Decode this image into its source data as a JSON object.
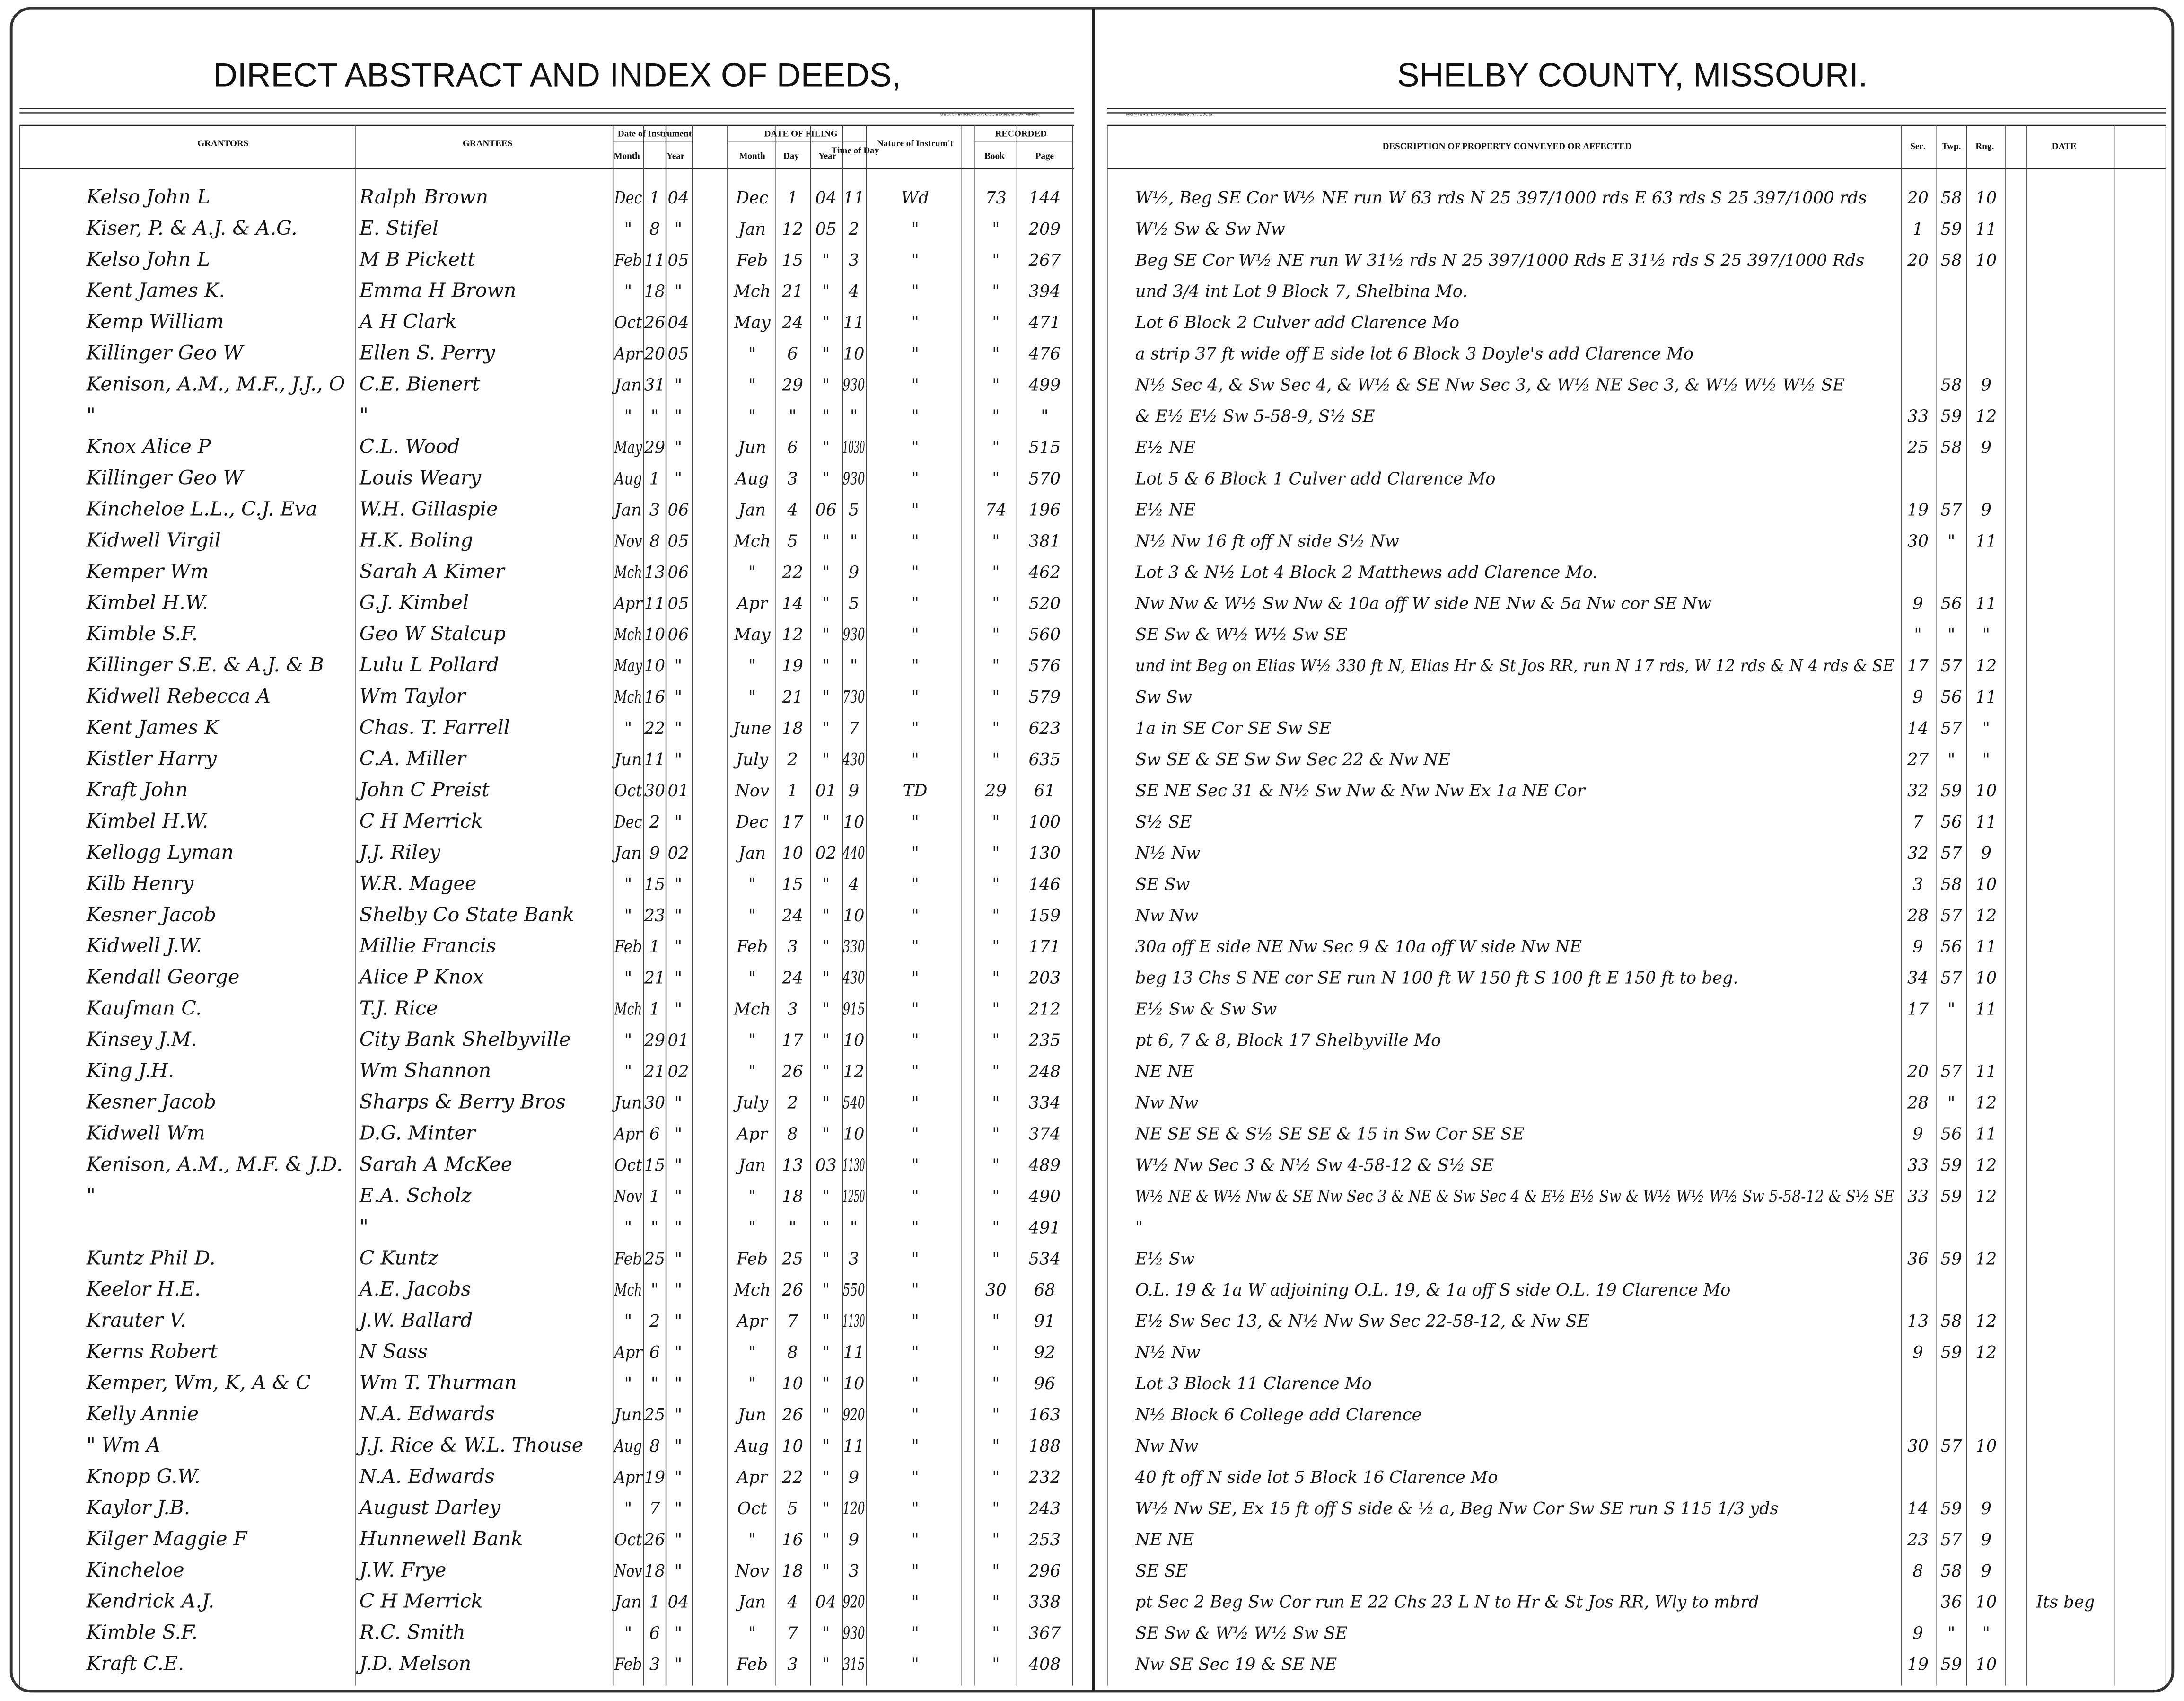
{
  "header": {
    "left_title": "DIRECT ABSTRACT AND INDEX OF DEEDS,",
    "right_title": "SHELBY COUNTY, MISSOURI.",
    "left_imprint": "GEO. D. BARNARD & CO., BLANK BOOK MFRS",
    "right_imprint": "PRINTERS, LITHOGRAPHERS, ST. LOUIS."
  },
  "columns": {
    "grantors": "GRANTORS",
    "grantees": "GRANTEES",
    "date_of_instrument": "Date of Instrument",
    "instrument_month": "Month",
    "instrument_year": "Year",
    "date_of_filing": "DATE OF FILING",
    "filing_month": "Month",
    "filing_day": "Day",
    "filing_year": "Year",
    "filing_time": "Time of Day",
    "nature": "Nature of Instrum't",
    "recorded": "RECORDED",
    "book": "Book",
    "page": "Page",
    "description": "DESCRIPTION OF PROPERTY CONVEYED OR AFFECTED",
    "sec": "Sec.",
    "twp": "Twp.",
    "rng": "Rng.",
    "date": "DATE"
  },
  "table": {
    "rows": [
      [
        "Kelso John L",
        "Ralph Brown",
        "Dec",
        "1",
        "04",
        "Dec",
        "1",
        "04",
        "11",
        "Wd",
        "73",
        "144",
        "W½, Beg SE Cor W½ NE run W 63 rds N 25 397/1000 rds E 63 rds S 25 397/1000 rds",
        "20",
        "58",
        "10",
        null
      ],
      [
        "Kiser, P. & A.J. & A.G.",
        "E. Stifel",
        "\"",
        "8",
        "\"",
        "Jan",
        "12",
        "05",
        "2",
        "\"",
        "\"",
        "209",
        "W½ Sw & Sw Nw",
        "1",
        "59",
        "11",
        null
      ],
      [
        "Kelso John L",
        "M B Pickett",
        "Feb",
        "11",
        "05",
        "Feb",
        "15",
        "\"",
        "3",
        "\"",
        "\"",
        "267",
        "Beg SE Cor W½ NE run W 31½ rds N 25 397/1000 Rds E 31½ rds S 25 397/1000 Rds",
        "20",
        "58",
        "10",
        null
      ],
      [
        "Kent James K.",
        "Emma H Brown",
        "\"",
        "18",
        "\"",
        "Mch",
        "21",
        "\"",
        "4",
        "\"",
        "\"",
        "394",
        "und 3/4 int Lot 9 Block 7, Shelbina Mo.",
        null,
        null,
        null,
        null
      ],
      [
        "Kemp William",
        "A H Clark",
        "Oct",
        "26",
        "04",
        "May",
        "24",
        "\"",
        "11",
        "\"",
        "\"",
        "471",
        "Lot 6 Block 2 Culver add Clarence Mo",
        null,
        null,
        null,
        null
      ],
      [
        "Killinger Geo W",
        "Ellen S. Perry",
        "Apr",
        "20",
        "05",
        "\"",
        "6",
        "\"",
        "10",
        "\"",
        "\"",
        "476",
        "a strip 37 ft wide off E side lot 6 Block 3 Doyle's add Clarence Mo",
        null,
        null,
        null,
        null
      ],
      [
        "Kenison, A.M., M.F., J.J., O",
        "C.E. Bienert",
        "Jan",
        "31",
        "\"",
        "\"",
        "29",
        "\"",
        "930",
        "\"",
        "\"",
        "499",
        "N½ Sec 4, & Sw Sec 4, & W½ & SE Nw Sec 3, & W½ NE Sec 3, & W½ W½ W½ SE",
        null,
        "58",
        "9",
        null
      ],
      [
        "\"",
        "\"",
        "\"",
        "\"",
        "\"",
        "\"",
        "\"",
        "\"",
        "\"",
        "\"",
        "\"",
        "\"",
        "& E½ E½ Sw 5-58-9, S½ SE",
        "33",
        "59",
        "12",
        null
      ],
      [
        "Knox Alice P",
        "C.L. Wood",
        "May",
        "29",
        "\"",
        "Jun",
        "6",
        "\"",
        "1030",
        "\"",
        "\"",
        "515",
        "E½ NE",
        "25",
        "58",
        "9",
        null
      ],
      [
        "Killinger Geo W",
        "Louis Weary",
        "Aug",
        "1",
        "\"",
        "Aug",
        "3",
        "\"",
        "930",
        "\"",
        "\"",
        "570",
        "Lot 5 & 6 Block 1 Culver add Clarence Mo",
        null,
        null,
        null,
        null
      ],
      [
        "Kincheloe L.L., C.J. Eva",
        "W.H. Gillaspie",
        "Jan",
        "3",
        "06",
        "Jan",
        "4",
        "06",
        "5",
        "\"",
        "74",
        "196",
        "E½ NE",
        "19",
        "57",
        "9",
        null
      ],
      [
        "Kidwell Virgil",
        "H.K. Boling",
        "Nov",
        "8",
        "05",
        "Mch",
        "5",
        "\"",
        "\"",
        "\"",
        "\"",
        "381",
        "N½ Nw 16 ft off N side S½ Nw",
        "30",
        "\"",
        "11",
        null
      ],
      [
        "Kemper Wm",
        "Sarah A Kimer",
        "Mch",
        "13",
        "06",
        "\"",
        "22",
        "\"",
        "9",
        "\"",
        "\"",
        "462",
        "Lot 3 & N½ Lot 4 Block 2 Matthews add Clarence Mo.",
        null,
        null,
        null,
        null
      ],
      [
        "Kimbel H.W.",
        "G.J. Kimbel",
        "Apr",
        "11",
        "05",
        "Apr",
        "14",
        "\"",
        "5",
        "\"",
        "\"",
        "520",
        "Nw Nw & W½ Sw Nw & 10a off W side NE Nw & 5a Nw cor SE Nw",
        "9",
        "56",
        "11",
        null
      ],
      [
        "Kimble S.F.",
        "Geo W Stalcup",
        "Mch",
        "10",
        "06",
        "May",
        "12",
        "\"",
        "930",
        "\"",
        "\"",
        "560",
        "SE Sw & W½ W½ Sw SE",
        "\"",
        "\"",
        "\"",
        null
      ],
      [
        "Killinger S.E. & A.J. & B",
        "Lulu L Pollard",
        "May",
        "10",
        "\"",
        "\"",
        "19",
        "\"",
        "\"",
        "\"",
        "\"",
        "576",
        "und int Beg on Elias W½ 330 ft N, Elias Hr & St Jos RR, run N 17 rds, W 12 rds & N 4 rds & SE",
        "17",
        "57",
        "12",
        null
      ],
      [
        "Kidwell Rebecca A",
        "Wm Taylor",
        "Mch",
        "16",
        "\"",
        "\"",
        "21",
        "\"",
        "730",
        "\"",
        "\"",
        "579",
        "Sw Sw",
        "9",
        "56",
        "11",
        null
      ],
      [
        "Kent James K",
        "Chas. T. Farrell",
        "\"",
        "22",
        "\"",
        "June",
        "18",
        "\"",
        "7",
        "\"",
        "\"",
        "623",
        "1a in SE Cor SE Sw SE",
        "14",
        "57",
        "\"",
        null
      ],
      [
        "Kistler Harry",
        "C.A. Miller",
        "Jun",
        "11",
        "\"",
        "July",
        "2",
        "\"",
        "430",
        "\"",
        "\"",
        "635",
        "Sw SE & SE Sw Sw Sec 22 & Nw NE",
        "27",
        "\"",
        "\"",
        null
      ],
      [
        "Kraft John",
        "John C Preist",
        "Oct",
        "30",
        "01",
        "Nov",
        "1",
        "01",
        "9",
        "TD",
        "29",
        "61",
        "SE NE Sec 31 & N½ Sw Nw & Nw Nw Ex 1a NE Cor",
        "32",
        "59",
        "10",
        null
      ],
      [
        "Kimbel H.W.",
        "C H Merrick",
        "Dec",
        "2",
        "\"",
        "Dec",
        "17",
        "\"",
        "10",
        "\"",
        "\"",
        "100",
        "S½ SE",
        "7",
        "56",
        "11",
        null
      ],
      [
        "Kellogg Lyman",
        "J.J. Riley",
        "Jan",
        "9",
        "02",
        "Jan",
        "10",
        "02",
        "440",
        "\"",
        "\"",
        "130",
        "N½ Nw",
        "32",
        "57",
        "9",
        null
      ],
      [
        "Kilb Henry",
        "W.R. Magee",
        "\"",
        "15",
        "\"",
        "\"",
        "15",
        "\"",
        "4",
        "\"",
        "\"",
        "146",
        "SE Sw",
        "3",
        "58",
        "10",
        null
      ],
      [
        "Kesner Jacob",
        "Shelby Co State Bank",
        "\"",
        "23",
        "\"",
        "\"",
        "24",
        "\"",
        "10",
        "\"",
        "\"",
        "159",
        "Nw Nw",
        "28",
        "57",
        "12",
        null
      ],
      [
        "Kidwell J.W.",
        "Millie Francis",
        "Feb",
        "1",
        "\"",
        "Feb",
        "3",
        "\"",
        "330",
        "\"",
        "\"",
        "171",
        "30a off E side NE Nw Sec 9 & 10a off W side Nw NE",
        "9",
        "56",
        "11",
        null
      ],
      [
        "Kendall George",
        "Alice P Knox",
        "\"",
        "21",
        "\"",
        "\"",
        "24",
        "\"",
        "430",
        "\"",
        "\"",
        "203",
        "beg 13 Chs S NE cor SE run N 100 ft W 150 ft S 100 ft E 150 ft to beg.",
        "34",
        "57",
        "10",
        null
      ],
      [
        "Kaufman C.",
        "T.J. Rice",
        "Mch",
        "1",
        "\"",
        "Mch",
        "3",
        "\"",
        "915",
        "\"",
        "\"",
        "212",
        "E½ Sw & Sw Sw",
        "17",
        "\"",
        "11",
        null
      ],
      [
        "Kinsey J.M.",
        "City Bank Shelbyville",
        "\"",
        "29",
        "01",
        "\"",
        "17",
        "\"",
        "10",
        "\"",
        "\"",
        "235",
        "pt 6, 7 & 8, Block 17 Shelbyville Mo",
        null,
        null,
        null,
        null
      ],
      [
        "King J.H.",
        "Wm Shannon",
        "\"",
        "21",
        "02",
        "\"",
        "26",
        "\"",
        "12",
        "\"",
        "\"",
        "248",
        "NE NE",
        "20",
        "57",
        "11",
        null
      ],
      [
        "Kesner Jacob",
        "Sharps & Berry Bros",
        "Jun",
        "30",
        "\"",
        "July",
        "2",
        "\"",
        "540",
        "\"",
        "\"",
        "334",
        "Nw Nw",
        "28",
        "\"",
        "12",
        null
      ],
      [
        "Kidwell Wm",
        "D.G. Minter",
        "Apr",
        "6",
        "\"",
        "Apr",
        "8",
        "\"",
        "10",
        "\"",
        "\"",
        "374",
        "NE SE SE & S½ SE SE & 15 in Sw Cor SE SE",
        "9",
        "56",
        "11",
        null
      ],
      [
        "Kenison, A.M., M.F. & J.D.",
        "Sarah A McKee",
        "Oct",
        "15",
        "\"",
        "Jan",
        "13",
        "03",
        "1130",
        "\"",
        "\"",
        "489",
        "W½ Nw Sec 3 & N½ Sw 4-58-12 & S½ SE",
        "33",
        "59",
        "12",
        null
      ],
      [
        "\"",
        "E.A. Scholz",
        "Nov",
        "1",
        "\"",
        "\"",
        "18",
        "\"",
        "1250",
        "\"",
        "\"",
        "490",
        "W½ NE & W½ Nw & SE Nw Sec 3 & NE & Sw Sec 4 & E½ E½ Sw & W½ W½ W½ Sw 5-58-12 & S½ SE",
        "33",
        "59",
        "12",
        null
      ],
      [
        null,
        "\"",
        "\"",
        "\"",
        "\"",
        "\"",
        "\"",
        "\"",
        "\"",
        "\"",
        "\"",
        "491",
        "\"",
        null,
        null,
        null,
        null
      ],
      [
        "Kuntz Phil D.",
        "C Kuntz",
        "Feb",
        "25",
        "\"",
        "Feb",
        "25",
        "\"",
        "3",
        "\"",
        "\"",
        "534",
        "E½ Sw",
        "36",
        "59",
        "12",
        null
      ],
      [
        "Keelor H.E.",
        "A.E. Jacobs",
        "Mch",
        "\"",
        "\"",
        "Mch",
        "26",
        "\"",
        "550",
        "\"",
        "30",
        "68",
        "O.L. 19 & 1a W adjoining O.L. 19, & 1a off S side O.L. 19 Clarence Mo",
        null,
        null,
        null,
        null
      ],
      [
        "Krauter V.",
        "J.W. Ballard",
        "\"",
        "2",
        "\"",
        "Apr",
        "7",
        "\"",
        "1130",
        "\"",
        "\"",
        "91",
        "E½ Sw Sec 13, & N½ Nw Sw Sec 22-58-12, & Nw SE",
        "13",
        "58",
        "12",
        null
      ],
      [
        "Kerns Robert",
        "N Sass",
        "Apr",
        "6",
        "\"",
        "\"",
        "8",
        "\"",
        "11",
        "\"",
        "\"",
        "92",
        "N½ Nw",
        "9",
        "59",
        "12",
        null
      ],
      [
        "Kemper, Wm, K, A & C",
        "Wm T. Thurman",
        "\"",
        "\"",
        "\"",
        "\"",
        "10",
        "\"",
        "10",
        "\"",
        "\"",
        "96",
        "Lot 3 Block 11 Clarence Mo",
        null,
        null,
        null,
        null
      ],
      [
        "Kelly Annie",
        "N.A. Edwards",
        "Jun",
        "25",
        "\"",
        "Jun",
        "26",
        "\"",
        "920",
        "\"",
        "\"",
        "163",
        "N½ Block 6 College add Clarence",
        null,
        null,
        null,
        null
      ],
      [
        "\" Wm A",
        "J.J. Rice & W.L. Thouse",
        "Aug",
        "8",
        "\"",
        "Aug",
        "10",
        "\"",
        "11",
        "\"",
        "\"",
        "188",
        "Nw Nw",
        "30",
        "57",
        "10",
        null
      ],
      [
        "Knopp G.W.",
        "N.A. Edwards",
        "Apr",
        "19",
        "\"",
        "Apr",
        "22",
        "\"",
        "9",
        "\"",
        "\"",
        "232",
        "40 ft off N side lot 5 Block 16 Clarence Mo",
        null,
        null,
        null,
        null
      ],
      [
        "Kaylor J.B.",
        "August Darley",
        "\"",
        "7",
        "\"",
        "Oct",
        "5",
        "\"",
        "120",
        "\"",
        "\"",
        "243",
        "W½ Nw SE, Ex 15 ft off S side & ½ a, Beg Nw Cor Sw SE run S 115 1/3 yds",
        "14",
        "59",
        "9",
        null
      ],
      [
        "Kilger Maggie F",
        "Hunnewell Bank",
        "Oct",
        "26",
        "\"",
        "\"",
        "16",
        "\"",
        "9",
        "\"",
        "\"",
        "253",
        "NE NE",
        "23",
        "57",
        "9",
        null
      ],
      [
        "Kincheloe",
        "J.W. Frye",
        "Nov",
        "18",
        "\"",
        "Nov",
        "18",
        "\"",
        "3",
        "\"",
        "\"",
        "296",
        "SE SE",
        "8",
        "58",
        "9",
        null
      ],
      [
        "Kendrick A.J.",
        "C H Merrick",
        "Jan",
        "1",
        "04",
        "Jan",
        "4",
        "04",
        "920",
        "\"",
        "\"",
        "338",
        "pt Sec 2 Beg Sw Cor run E 22 Chs 23 L N to Hr & St Jos RR, Wly to mbrd",
        null,
        "36",
        "10",
        "Its beg"
      ],
      [
        "Kimble S.F.",
        "R.C. Smith",
        "\"",
        "6",
        "\"",
        "\"",
        "7",
        "\"",
        "930",
        "\"",
        "\"",
        "367",
        "SE Sw & W½ W½ Sw SE",
        "9",
        "\"",
        "\"",
        null
      ],
      [
        "Kraft C.E.",
        "J.D. Melson",
        "Feb",
        "3",
        "\"",
        "Feb",
        "3",
        "\"",
        "315",
        "\"",
        "\"",
        "408",
        "Nw SE Sec 19 & SE NE",
        "19",
        "59",
        "10",
        null
      ]
    ]
  }
}
